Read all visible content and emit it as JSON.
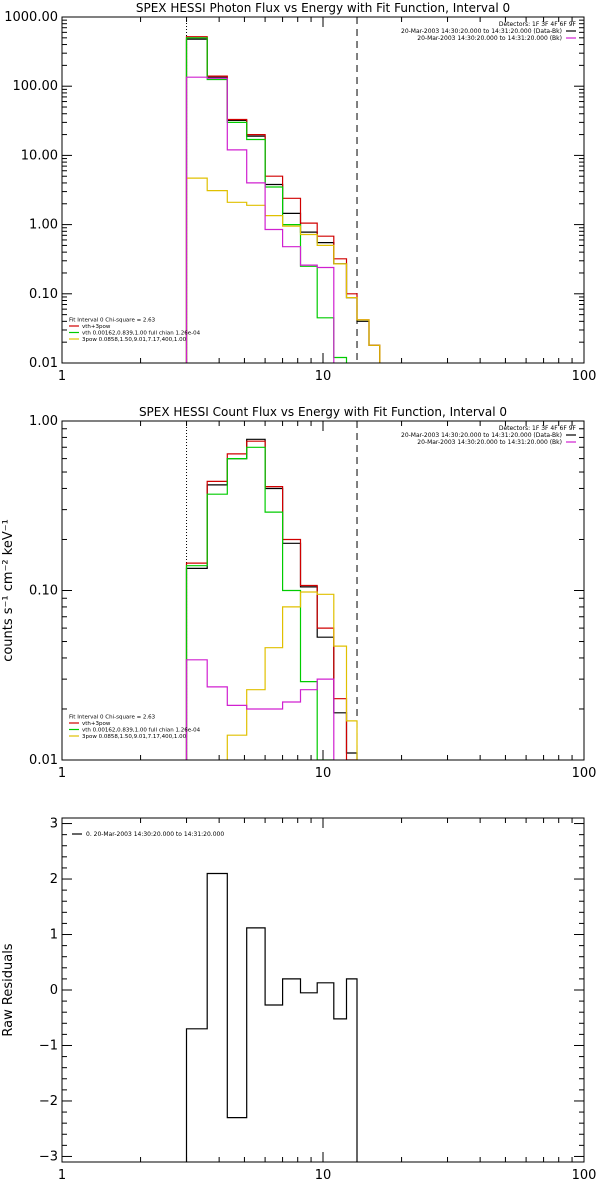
{
  "chart_data": [
    {
      "type": "line",
      "title": "SPEX HESSI Photon Flux vs Energy with Fit Function, Interval 0",
      "xlabel": "",
      "ylabel": "",
      "xscale": "log",
      "yscale": "log",
      "xlim": [
        1,
        100
      ],
      "ylim": [
        0.01,
        1000
      ],
      "xticks": [
        {
          "v": 1,
          "label": "1"
        },
        {
          "v": 10,
          "label": "10"
        },
        {
          "v": 100,
          "label": "100"
        }
      ],
      "yticks": [
        {
          "v": 0.01,
          "label": "0.01"
        },
        {
          "v": 0.1,
          "label": "0.10"
        },
        {
          "v": 1,
          "label": "1.00"
        },
        {
          "v": 10,
          "label": "10.00"
        },
        {
          "v": 100,
          "label": "100.00"
        },
        {
          "v": 1000,
          "label": "1000.00"
        }
      ],
      "vlines": [
        {
          "x": 3.0,
          "style": "dotted",
          "color": "#000000"
        },
        {
          "x": 13.5,
          "style": "dashed",
          "color": "#000000"
        }
      ],
      "legend_top_right": [
        {
          "text": "Detectors: 1F 3F 4F 6F 9F",
          "color": ""
        },
        {
          "text": "20-Mar-2003 14:30:20.000 to 14:31:20.000 (Data-Bk)",
          "color": "#000000"
        },
        {
          "text": "20-Mar-2003 14:30:20.000 to 14:31:20.000 (Bk)",
          "color": "#d020d0"
        }
      ],
      "legend_bottom_left": [
        {
          "text": "Fit Interval 0   Chi-square = 2.63",
          "color": ""
        },
        {
          "text": "vth+3pow",
          "color": "#d00000"
        },
        {
          "text": "vth 0.00162,0.839,1.00  full chian 1.26e-04",
          "color": "#00cc00"
        },
        {
          "text": "3pow 0.0858,1.50,9.01,7.17,400,1.00",
          "color": "#e0c000"
        }
      ],
      "series": [
        {
          "name": "Data-Bk",
          "color": "#000000",
          "step": true,
          "edges": [
            3.0,
            3.6,
            4.3,
            5.1,
            6.0,
            7.0,
            8.2,
            9.5,
            11.0,
            12.3,
            13.5,
            15.0,
            16.5
          ],
          "values": [
            480,
            135,
            32,
            19,
            3.8,
            1.45,
            0.78,
            0.55,
            0.27,
            0.088,
            0.04,
            0.018
          ]
        },
        {
          "name": "vth+3pow",
          "color": "#d00000",
          "step": true,
          "edges": [
            3.0,
            3.6,
            4.3,
            5.1,
            6.0,
            7.0,
            8.2,
            9.5,
            11.0,
            12.3,
            13.5,
            15.0,
            16.5
          ],
          "values": [
            520,
            140,
            33,
            20,
            5.0,
            2.4,
            1.05,
            0.68,
            0.32,
            0.1,
            0.042,
            0.018
          ]
        },
        {
          "name": "vth",
          "color": "#00cc00",
          "step": true,
          "edges": [
            3.0,
            3.6,
            4.3,
            5.1,
            6.0,
            7.0,
            8.2,
            9.5,
            11.0,
            12.3
          ],
          "values": [
            500,
            125,
            30,
            17,
            3.5,
            1.0,
            0.25,
            0.045,
            0.012
          ]
        },
        {
          "name": "3pow",
          "color": "#e0c000",
          "step": true,
          "edges": [
            3.0,
            3.6,
            4.3,
            5.1,
            6.0,
            7.0,
            8.2,
            9.5,
            11.0,
            12.3,
            13.5,
            15.0,
            16.5
          ],
          "values": [
            4.7,
            3.1,
            2.1,
            1.9,
            1.35,
            0.95,
            0.72,
            0.5,
            0.27,
            0.088,
            0.042,
            0.018
          ]
        },
        {
          "name": "Bk",
          "color": "#d020d0",
          "step": true,
          "edges": [
            3.0,
            3.6,
            4.3,
            5.1,
            6.0,
            7.0,
            8.2,
            9.5,
            11.0
          ],
          "values": [
            135,
            130,
            12,
            4.0,
            0.85,
            0.48,
            0.26,
            0.24
          ]
        }
      ]
    },
    {
      "type": "line",
      "title": "SPEX HESSI Count Flux vs Energy with Fit Function, Interval 0",
      "xlabel": "",
      "ylabel": "counts s⁻¹ cm⁻² keV⁻¹",
      "xscale": "log",
      "yscale": "log",
      "xlim": [
        1,
        100
      ],
      "ylim": [
        0.01,
        1.0
      ],
      "xticks": [
        {
          "v": 1,
          "label": "1"
        },
        {
          "v": 10,
          "label": "10"
        },
        {
          "v": 100,
          "label": "100"
        }
      ],
      "yticks": [
        {
          "v": 0.01,
          "label": "0.01"
        },
        {
          "v": 0.1,
          "label": "0.10"
        },
        {
          "v": 1,
          "label": "1.00"
        }
      ],
      "vlines": [
        {
          "x": 3.0,
          "style": "dotted",
          "color": "#000000"
        },
        {
          "x": 13.5,
          "style": "dashed",
          "color": "#000000"
        }
      ],
      "legend_top_right": [
        {
          "text": "Detectors: 1F 3F 4F 6F 9F",
          "color": ""
        },
        {
          "text": "20-Mar-2003 14:30:20.000 to 14:31:20.000 (Data-Bk)",
          "color": "#000000"
        },
        {
          "text": "20-Mar-2003 14:30:20.000 to 14:31:20.000 (Bk)",
          "color": "#d020d0"
        }
      ],
      "legend_bottom_left": [
        {
          "text": "Fit Interval 0   Chi-square = 2.63",
          "color": ""
        },
        {
          "text": "vth+3pow",
          "color": "#d00000"
        },
        {
          "text": "vth 0.00162,0.839,1.00  full chian 1.26e-04",
          "color": "#00cc00"
        },
        {
          "text": "3pow 0.0858,1.50,9.01,7.17,400,1.00",
          "color": "#e0c000"
        }
      ],
      "series": [
        {
          "name": "Data-Bk",
          "color": "#000000",
          "step": true,
          "edges": [
            3.0,
            3.6,
            4.3,
            5.1,
            6.0,
            7.0,
            8.2,
            9.5,
            11.0,
            12.3,
            13.5
          ],
          "values": [
            0.135,
            0.42,
            0.6,
            0.78,
            0.4,
            0.19,
            0.105,
            0.053,
            0.019,
            0.011
          ]
        },
        {
          "name": "vth+3pow",
          "color": "#d00000",
          "step": true,
          "edges": [
            3.0,
            3.6,
            4.3,
            5.1,
            6.0,
            7.0,
            8.2,
            9.5,
            11.0,
            12.3,
            13.5
          ],
          "values": [
            0.145,
            0.44,
            0.64,
            0.76,
            0.41,
            0.2,
            0.107,
            0.06,
            0.023,
            0.01
          ]
        },
        {
          "name": "vth",
          "color": "#00cc00",
          "step": true,
          "edges": [
            3.0,
            3.6,
            4.3,
            5.1,
            6.0,
            7.0,
            8.2,
            9.5,
            11.0
          ],
          "values": [
            0.14,
            0.37,
            0.6,
            0.7,
            0.29,
            0.1,
            0.029,
            0.01
          ]
        },
        {
          "name": "3pow",
          "color": "#e0c000",
          "step": true,
          "edges": [
            3.0,
            3.6,
            4.3,
            5.1,
            6.0,
            7.0,
            8.2,
            9.5,
            11.0,
            12.3,
            13.5
          ],
          "values": [
            0.0095,
            0.0095,
            0.014,
            0.026,
            0.046,
            0.08,
            0.098,
            0.095,
            0.047,
            0.017,
            0.0095
          ]
        },
        {
          "name": "Bk",
          "color": "#d020d0",
          "step": true,
          "edges": [
            3.0,
            3.6,
            4.3,
            5.1,
            6.0,
            7.0,
            8.2,
            9.5,
            11.0
          ],
          "values": [
            0.039,
            0.027,
            0.021,
            0.02,
            0.02,
            0.022,
            0.026,
            0.03
          ]
        }
      ]
    },
    {
      "type": "line",
      "title": "",
      "xlabel": "",
      "ylabel": "Raw Residuals",
      "xscale": "log",
      "yscale": "linear",
      "xlim": [
        1,
        100
      ],
      "ylim": [
        -3.1,
        3.1
      ],
      "xticks": [
        {
          "v": 1,
          "label": "1"
        },
        {
          "v": 10,
          "label": "10"
        },
        {
          "v": 100,
          "label": "100"
        }
      ],
      "yticks": [
        {
          "v": -3,
          "label": "−3"
        },
        {
          "v": -2,
          "label": "−2"
        },
        {
          "v": -1,
          "label": "−1"
        },
        {
          "v": 0,
          "label": "0"
        },
        {
          "v": 1,
          "label": "1"
        },
        {
          "v": 2,
          "label": "2"
        },
        {
          "v": 3,
          "label": "3"
        }
      ],
      "vlines": [],
      "legend_top_right": [],
      "legend_top_left": [
        {
          "text": "0. 20-Mar-2003 14:30:20.000 to 14:31:20.000",
          "color": "#000000"
        }
      ],
      "legend_bottom_left": [],
      "series": [
        {
          "name": "0. 20-Mar-2003 14:30:20.000 to 14:31:20.000",
          "color": "#000000",
          "step": true,
          "edges": [
            3.0,
            3.6,
            4.3,
            5.1,
            6.0,
            7.0,
            8.2,
            9.5,
            11.0,
            12.3,
            13.5
          ],
          "values": [
            -0.7,
            2.1,
            -2.3,
            1.12,
            -0.27,
            0.2,
            -0.05,
            0.13,
            -0.52,
            0.2
          ],
          "closed": true
        }
      ]
    }
  ]
}
